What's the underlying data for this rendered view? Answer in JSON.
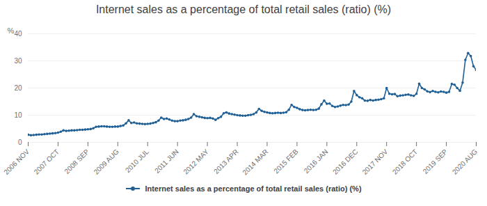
{
  "chart_data": {
    "type": "line",
    "title": "Internet sales as a percentage of total retail sales (ratio) (%)",
    "y_label": "%",
    "categories": [
      "2006 NOV",
      null,
      null,
      null,
      null,
      null,
      null,
      null,
      null,
      null,
      null,
      "2007 OCT",
      null,
      null,
      null,
      null,
      null,
      null,
      null,
      null,
      null,
      null,
      "2008 SEP",
      null,
      null,
      null,
      null,
      null,
      null,
      null,
      null,
      null,
      null,
      "2009 AUG",
      null,
      null,
      null,
      null,
      null,
      null,
      null,
      null,
      null,
      null,
      "2010 JUL",
      null,
      null,
      null,
      null,
      null,
      null,
      null,
      null,
      null,
      null,
      "2011 JUN",
      null,
      null,
      null,
      null,
      null,
      null,
      null,
      null,
      null,
      null,
      "2012 MAY",
      null,
      null,
      null,
      null,
      null,
      null,
      null,
      null,
      null,
      null,
      "2013 APR",
      null,
      null,
      null,
      null,
      null,
      null,
      null,
      null,
      null,
      null,
      "2014 MAR",
      null,
      null,
      null,
      null,
      null,
      null,
      null,
      null,
      null,
      null,
      "2015 FEB",
      null,
      null,
      null,
      null,
      null,
      null,
      null,
      null,
      null,
      null,
      "2016 JAN",
      null,
      null,
      null,
      null,
      null,
      null,
      null,
      null,
      null,
      null,
      "2016 DEC",
      null,
      null,
      null,
      null,
      null,
      null,
      null,
      null,
      null,
      null,
      "2017 NOV",
      null,
      null,
      null,
      null,
      null,
      null,
      null,
      null,
      null,
      null,
      "2018 OCT",
      null,
      null,
      null,
      null,
      null,
      null,
      null,
      null,
      null,
      null,
      "2019 SEP",
      null,
      null,
      null,
      null,
      null,
      null,
      null,
      null,
      null,
      null,
      "2020 AUG"
    ],
    "series": [
      {
        "name": "Internet sales as a percentage of total retail sales (ratio) (%)",
        "color": "#206095",
        "values": [
          2.8,
          2.6,
          2.7,
          2.8,
          2.9,
          2.9,
          3.0,
          3.1,
          3.2,
          3.3,
          3.4,
          3.6,
          3.9,
          4.4,
          4.2,
          4.3,
          4.4,
          4.4,
          4.5,
          4.6,
          4.6,
          4.7,
          4.8,
          4.9,
          5.2,
          5.7,
          5.8,
          5.9,
          5.9,
          5.8,
          5.7,
          5.7,
          5.8,
          5.8,
          6.0,
          6.2,
          7.0,
          8.1,
          7.1,
          7.3,
          7.0,
          6.9,
          6.8,
          6.7,
          6.8,
          6.9,
          7.1,
          7.4,
          8.0,
          9.1,
          8.6,
          8.8,
          8.4,
          8.0,
          7.8,
          7.8,
          8.0,
          8.1,
          8.3,
          8.6,
          9.1,
          10.4,
          9.6,
          9.4,
          9.2,
          9.0,
          8.9,
          9.0,
          8.8,
          8.3,
          8.9,
          9.4,
          10.7,
          11.0,
          10.6,
          10.4,
          10.2,
          10.0,
          9.9,
          9.8,
          9.8,
          10.0,
          10.1,
          10.4,
          11.0,
          12.3,
          11.6,
          11.2,
          11.0,
          10.8,
          10.7,
          10.8,
          10.9,
          10.8,
          10.9,
          11.1,
          12.0,
          13.8,
          13.0,
          12.7,
          12.2,
          11.9,
          11.8,
          11.9,
          12.0,
          11.9,
          12.0,
          12.4,
          14.0,
          15.4,
          14.2,
          14.3,
          13.4,
          13.0,
          13.2,
          13.5,
          13.8,
          13.7,
          13.9,
          15.0,
          18.9,
          17.4,
          16.6,
          16.2,
          15.4,
          15.3,
          15.6,
          15.4,
          15.6,
          15.7,
          15.9,
          16.2,
          20.0,
          17.9,
          17.7,
          17.8,
          17.0,
          17.2,
          17.3,
          17.5,
          17.6,
          17.3,
          17.1,
          17.9,
          21.6,
          20.0,
          19.5,
          18.8,
          18.5,
          18.9,
          18.6,
          18.4,
          18.7,
          18.6,
          18.3,
          18.6,
          21.5,
          21.2,
          20.0,
          19.0,
          22.0,
          30.4,
          32.9,
          31.8,
          28.0,
          26.7
        ]
      }
    ],
    "ylim": [
      0,
      40
    ],
    "yticks": [
      0,
      10,
      20,
      30,
      40
    ],
    "grid": true,
    "marker": "circle",
    "legend": "bottom"
  }
}
